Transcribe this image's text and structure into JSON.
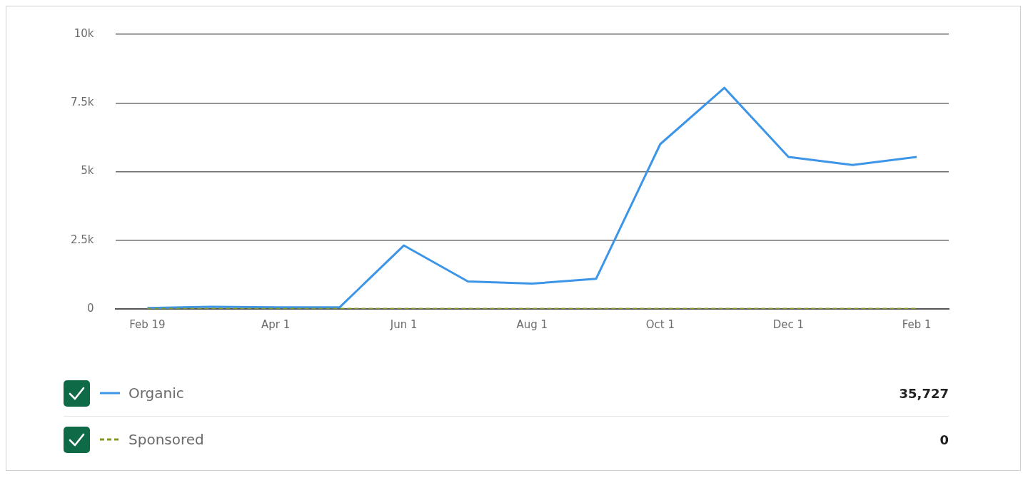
{
  "chart_data": {
    "type": "line",
    "categories": [
      "Feb 19",
      null,
      "Apr 1",
      null,
      "Jun 1",
      null,
      "Aug 1",
      null,
      "Oct 1",
      null,
      "Dec 1",
      null,
      "Feb 1"
    ],
    "series": [
      {
        "name": "Organic",
        "color": "#3d95e8",
        "line_style": "solid",
        "values": [
          30,
          80,
          60,
          60,
          2310,
          1000,
          920,
          1100,
          6000,
          8050,
          5530,
          5240,
          5530
        ]
      },
      {
        "name": "Sponsored",
        "color": "#7f9a1e",
        "line_style": "dashed",
        "values": [
          0,
          0,
          0,
          0,
          0,
          0,
          0,
          0,
          0,
          0,
          0,
          0,
          0
        ]
      }
    ],
    "ylim": [
      0,
      10000
    ],
    "yticks": [
      0,
      {
        "value": 2500,
        "label": "2.5k"
      },
      {
        "value": 5000,
        "label": "5k"
      },
      {
        "value": 7500,
        "label": "7.5k"
      },
      {
        "value": 10000,
        "label": "10k"
      }
    ],
    "grid": "y",
    "legend": "bottom",
    "marker": "none",
    "annotations": [
      "35,727",
      "0"
    ]
  }
}
